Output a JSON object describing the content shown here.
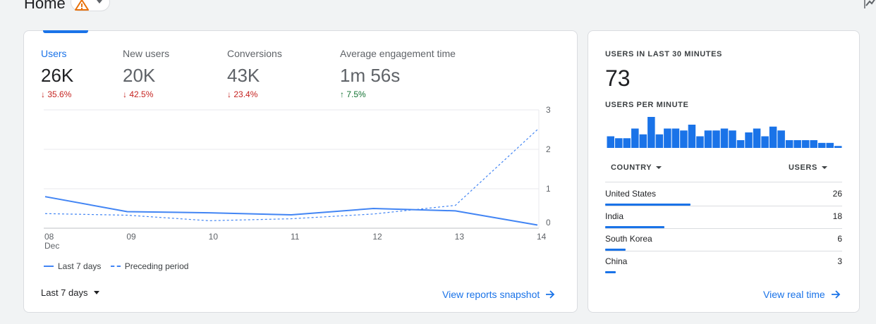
{
  "header": {
    "title": "Home",
    "warning_icon": "warning-icon",
    "warning_color": "#e8710a"
  },
  "overview": {
    "metrics": [
      {
        "label": "Users",
        "value": "26K",
        "change": "35.6%",
        "direction": "down"
      },
      {
        "label": "New users",
        "value": "20K",
        "change": "42.5%",
        "direction": "down"
      },
      {
        "label": "Conversions",
        "value": "43K",
        "change": "23.4%",
        "direction": "down"
      },
      {
        "label": "Average engagement time",
        "value": "1m 56s",
        "change": "7.5%",
        "direction": "up"
      }
    ],
    "legend": {
      "current": "Last 7 days",
      "previous": "Preceding period"
    },
    "range_label": "Last 7 days",
    "link_label": "View reports snapshot"
  },
  "chart_data": {
    "type": "line",
    "x": [
      "08",
      "09",
      "10",
      "11",
      "12",
      "13",
      "14"
    ],
    "x_sublabel": "Dec",
    "yticks": [
      "30K",
      "20K",
      "10K",
      "0"
    ],
    "ylim": [
      0,
      30000
    ],
    "series": [
      {
        "name": "Last 7 days",
        "style": "solid",
        "values": [
          8000,
          4200,
          3900,
          3400,
          5000,
          4400,
          800
        ]
      },
      {
        "name": "Preceding period",
        "style": "dashed",
        "values": [
          3700,
          3300,
          1900,
          2400,
          3600,
          5800,
          25000
        ]
      }
    ],
    "grid": true,
    "legend_position": "bottom-left",
    "color": "#4285f4"
  },
  "realtime": {
    "users_label": "USERS IN LAST 30 MINUTES",
    "users_value": "73",
    "per_minute_label": "USERS PER MINUTE",
    "per_minute": [
      3,
      2.5,
      2.5,
      5,
      3.5,
      8,
      3.5,
      5,
      5,
      4.5,
      6,
      3,
      4.5,
      4.5,
      5,
      4.5,
      2,
      4,
      5,
      3,
      5.5,
      4.5,
      2,
      2,
      2,
      2,
      1.3,
      1.3,
      0.5
    ],
    "bar_color": "#1a73e8",
    "country_header": "COUNTRY",
    "users_header": "USERS",
    "countries": [
      {
        "name": "United States",
        "users": "26",
        "share": 1.0
      },
      {
        "name": "India",
        "users": "18",
        "share": 0.69
      },
      {
        "name": "South Korea",
        "users": "6",
        "share": 0.24
      },
      {
        "name": "China",
        "users": "3",
        "share": 0.12
      }
    ],
    "link_label": "View real time"
  }
}
